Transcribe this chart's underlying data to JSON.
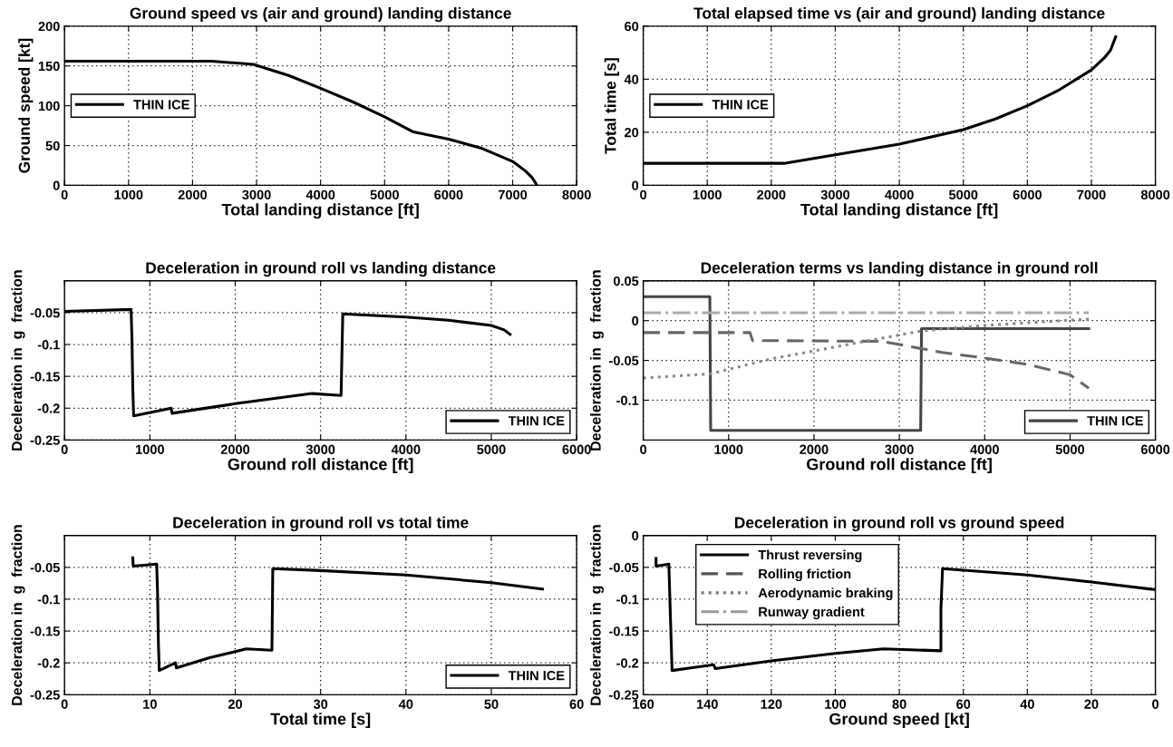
{
  "chart_data": [
    {
      "type": "line",
      "title": "Ground speed vs (air and ground) landing distance",
      "xlabel": "Total landing distance [ft]",
      "ylabel": "Ground speed [kt]",
      "xlim": [
        0,
        8000
      ],
      "xticks": [
        0,
        1000,
        2000,
        3000,
        4000,
        5000,
        6000,
        7000,
        8000
      ],
      "ylim": [
        0,
        200
      ],
      "yticks": [
        0,
        50,
        100,
        150,
        200
      ],
      "grid": true,
      "legend": "center left",
      "series": [
        {
          "name": "THIN ICE",
          "color": "#000000",
          "line_style": "solid",
          "x": [
            0,
            2300,
            2950,
            3500,
            4000,
            4500,
            5000,
            5450,
            6000,
            6500,
            7000,
            7200,
            7300,
            7350,
            7380
          ],
          "values": [
            156,
            156,
            152,
            138,
            122,
            105,
            86,
            67,
            58,
            47,
            30,
            18,
            10,
            4,
            0
          ]
        }
      ]
    },
    {
      "type": "line",
      "title": "Total elapsed time vs (air and ground) landing distance",
      "xlabel": "Total landing distance [ft]",
      "ylabel": "Total time [s]",
      "xlim": [
        0,
        8000
      ],
      "xticks": [
        0,
        1000,
        2000,
        3000,
        4000,
        5000,
        6000,
        7000,
        8000
      ],
      "ylim": [
        0,
        60
      ],
      "yticks": [
        0,
        20,
        40,
        60
      ],
      "grid": true,
      "legend": "center left",
      "series": [
        {
          "name": "THIN ICE",
          "color": "#000000",
          "line_style": "solid",
          "x": [
            0,
            2200,
            3000,
            4000,
            5000,
            5500,
            6000,
            6500,
            7000,
            7200,
            7300,
            7380
          ],
          "values": [
            8.3,
            8.3,
            11.5,
            15.5,
            21,
            25,
            30,
            36,
            43.5,
            48,
            51,
            56
          ]
        }
      ]
    },
    {
      "type": "line",
      "title": "Deceleration in ground roll vs landing distance",
      "xlabel": "Ground roll distance [ft]",
      "ylabel": "Deceleration in  g  fraction",
      "xlim": [
        0,
        6000
      ],
      "xticks": [
        0,
        1000,
        2000,
        3000,
        4000,
        5000,
        6000
      ],
      "ylim": [
        -0.25,
        0
      ],
      "yticks": [
        -0.25,
        -0.2,
        -0.15,
        -0.1,
        -0.05
      ],
      "grid": true,
      "legend": "lower right",
      "series": [
        {
          "name": "THIN ICE",
          "color": "#000000",
          "line_style": "solid",
          "x": [
            0,
            780,
            790,
            800,
            810,
            1250,
            1260,
            2000,
            2900,
            3240,
            3250,
            3260,
            4000,
            4500,
            5000,
            5150,
            5220
          ],
          "values": [
            -0.048,
            -0.045,
            -0.09,
            -0.17,
            -0.212,
            -0.2,
            -0.208,
            -0.193,
            -0.177,
            -0.18,
            -0.115,
            -0.052,
            -0.057,
            -0.062,
            -0.07,
            -0.077,
            -0.084
          ]
        }
      ]
    },
    {
      "type": "line",
      "title": "Deceleration terms vs landing distance in ground roll",
      "xlabel": "Ground roll distance [ft]",
      "ylabel": "Deceleration in  g  fraction",
      "xlim": [
        0,
        6000
      ],
      "xticks": [
        0,
        1000,
        2000,
        3000,
        4000,
        5000,
        6000
      ],
      "ylim": [
        -0.15,
        0.05
      ],
      "yticks": [
        -0.1,
        -0.05,
        0,
        0.05
      ],
      "grid": true,
      "legend": "lower right",
      "series": [
        {
          "name": "THIN ICE",
          "color": "#444444",
          "line_style": "solid",
          "x": [
            0,
            780,
            790,
            3250,
            3260,
            5220
          ],
          "values": [
            0.03,
            0.03,
            -0.138,
            -0.138,
            -0.01,
            -0.01
          ]
        },
        {
          "color": "#666666",
          "line_style": "dashed",
          "x": [
            0,
            1250,
            1280,
            2800,
            3000,
            3500,
            4000,
            4500,
            5000,
            5220
          ],
          "values": [
            -0.015,
            -0.015,
            -0.025,
            -0.026,
            -0.03,
            -0.04,
            -0.047,
            -0.055,
            -0.068,
            -0.085
          ]
        },
        {
          "color": "#888888",
          "line_style": "dotted",
          "x": [
            0,
            780,
            1500,
            2500,
            3250,
            4000,
            5220
          ],
          "values": [
            -0.072,
            -0.067,
            -0.048,
            -0.028,
            -0.013,
            -0.006,
            0.002
          ]
        },
        {
          "color": "#aaaaaa",
          "line_style": "dashdot",
          "x": [
            0,
            5220
          ],
          "values": [
            0.01,
            0.01
          ]
        }
      ]
    },
    {
      "type": "line",
      "title": "Deceleration in ground roll vs total time",
      "xlabel": "Total time [s]",
      "ylabel": "Deceleration in  g  fraction",
      "xlim": [
        0,
        60
      ],
      "xticks": [
        0,
        10,
        20,
        30,
        40,
        50,
        60
      ],
      "ylim": [
        -0.25,
        0
      ],
      "yticks": [
        -0.25,
        -0.2,
        -0.15,
        -0.1,
        -0.05
      ],
      "grid": true,
      "legend": "lower right",
      "series": [
        {
          "name": "THIN ICE",
          "color": "#000000",
          "line_style": "solid",
          "x": [
            8,
            8.05,
            10.8,
            10.9,
            11,
            11.1,
            13,
            13.1,
            17,
            21.3,
            24.3,
            24.4,
            30,
            40,
            50,
            56
          ],
          "values": [
            -0.035,
            -0.048,
            -0.045,
            -0.09,
            -0.17,
            -0.212,
            -0.2,
            -0.208,
            -0.192,
            -0.178,
            -0.18,
            -0.052,
            -0.055,
            -0.062,
            -0.074,
            -0.084
          ]
        }
      ]
    },
    {
      "type": "line",
      "title": "Deceleration in ground roll vs ground speed",
      "xlabel": "Ground speed [kt]",
      "ylabel": "Deceleration in  g  fraction",
      "xlim": [
        160,
        0
      ],
      "xticks": [
        160,
        140,
        120,
        100,
        80,
        60,
        40,
        20,
        0
      ],
      "ylim": [
        -0.25,
        0
      ],
      "yticks": [
        -0.25,
        -0.2,
        -0.15,
        -0.1,
        -0.05,
        0
      ],
      "grid": true,
      "legend": "upper left",
      "series": [
        {
          "name": "Thrust reversing",
          "color": "#000000",
          "line_style": "solid",
          "x": [
            156,
            156,
            152,
            151.5,
            151,
            138,
            137.5,
            120,
            100,
            85,
            67,
            67,
            66.5,
            40,
            20,
            0
          ],
          "values": [
            -0.036,
            -0.048,
            -0.045,
            -0.13,
            -0.212,
            -0.203,
            -0.209,
            -0.197,
            -0.185,
            -0.178,
            -0.181,
            -0.115,
            -0.052,
            -0.062,
            -0.073,
            -0.085
          ]
        },
        {
          "name": "Rolling friction",
          "color": "#555555",
          "line_style": "dashed"
        },
        {
          "name": "Aerodynamic braking",
          "color": "#777777",
          "line_style": "dotted"
        },
        {
          "name": "Runway gradient",
          "color": "#999999",
          "line_style": "dashdot"
        }
      ]
    }
  ]
}
